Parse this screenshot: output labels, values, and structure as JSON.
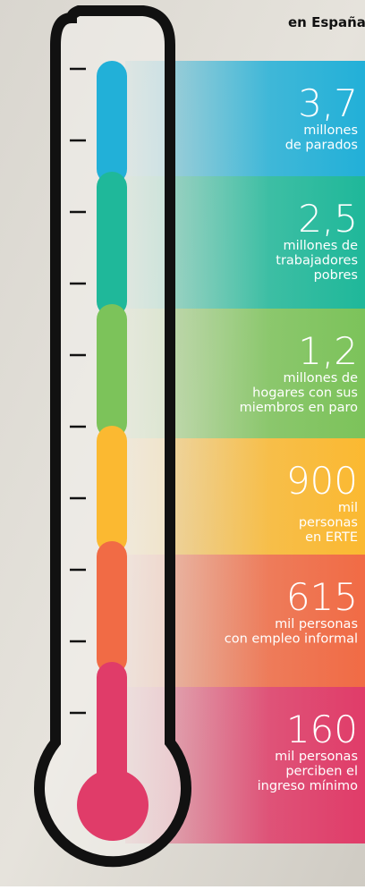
{
  "title": "en España",
  "items": [
    {
      "value": "3,7",
      "lines": [
        "millones",
        "de parados"
      ],
      "color": "#22b0d8"
    },
    {
      "value": "2,5",
      "lines": [
        "millones de",
        "trabajadores",
        "pobres"
      ],
      "color": "#1fb89a"
    },
    {
      "value": "1,2",
      "lines": [
        "millones de",
        "hogares con sus",
        "miembros en paro"
      ],
      "color": "#7cc35a"
    },
    {
      "value": "900",
      "lines": [
        "mil",
        "personas",
        "en ERTE"
      ],
      "color": "#fbb931"
    },
    {
      "value": "615",
      "lines": [
        "mil personas",
        "con empleo informal"
      ],
      "color": "#f16b45"
    },
    {
      "value": "160",
      "lines": [
        "mil personas",
        "perciben el",
        "ingreso mínimo"
      ],
      "color": "#e03c69"
    }
  ]
}
